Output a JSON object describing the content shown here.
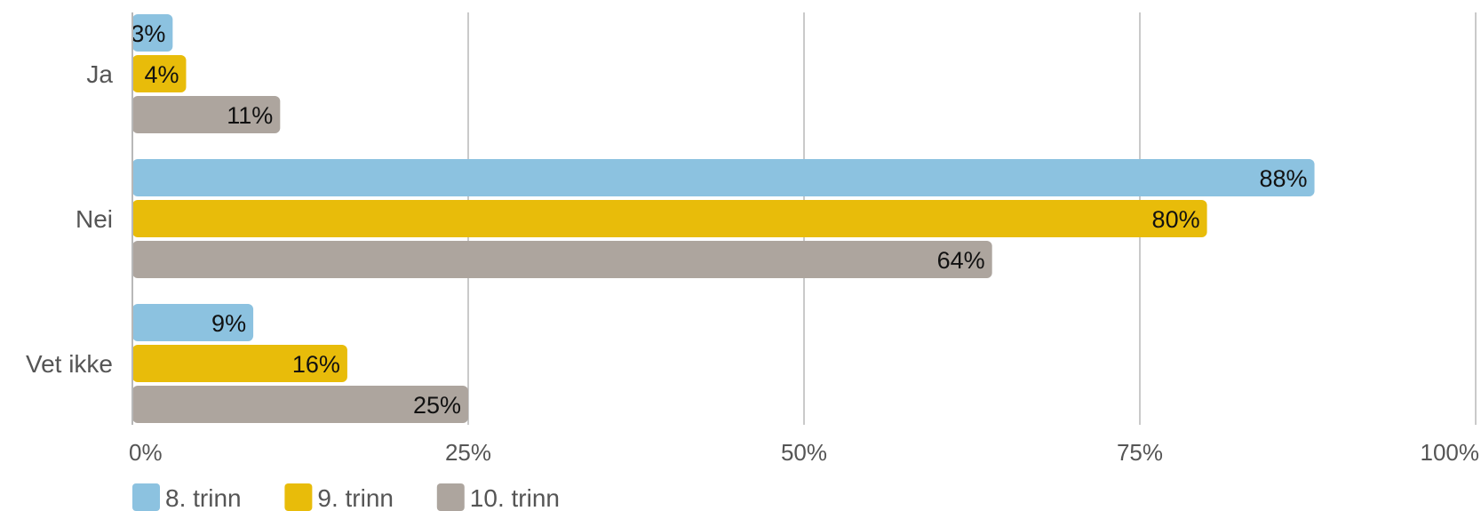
{
  "chart_data": {
    "type": "bar",
    "orientation": "horizontal",
    "categories": [
      "Ja",
      "Nei",
      "Vet ikke"
    ],
    "series": [
      {
        "name": "8. trinn",
        "color": "#8CC2E0",
        "values": [
          3,
          88,
          9
        ]
      },
      {
        "name": "9. trinn",
        "color": "#E8BC0A",
        "values": [
          4,
          80,
          16
        ]
      },
      {
        "name": "10. trinn",
        "color": "#ADA59E",
        "values": [
          11,
          64,
          25
        ]
      }
    ],
    "data_labels": [
      [
        "3%",
        "88%",
        "9%"
      ],
      [
        "4%",
        "80%",
        "16%"
      ],
      [
        "11%",
        "64%",
        "25%"
      ]
    ],
    "x_ticks": [
      0,
      25,
      50,
      75,
      100
    ],
    "x_tick_labels": [
      "0%",
      "25%",
      "50%",
      "75%",
      "100%"
    ],
    "xlim": [
      0,
      100
    ],
    "grid": true,
    "legend_position": "bottom-left",
    "title": "",
    "xlabel": "",
    "ylabel": ""
  }
}
